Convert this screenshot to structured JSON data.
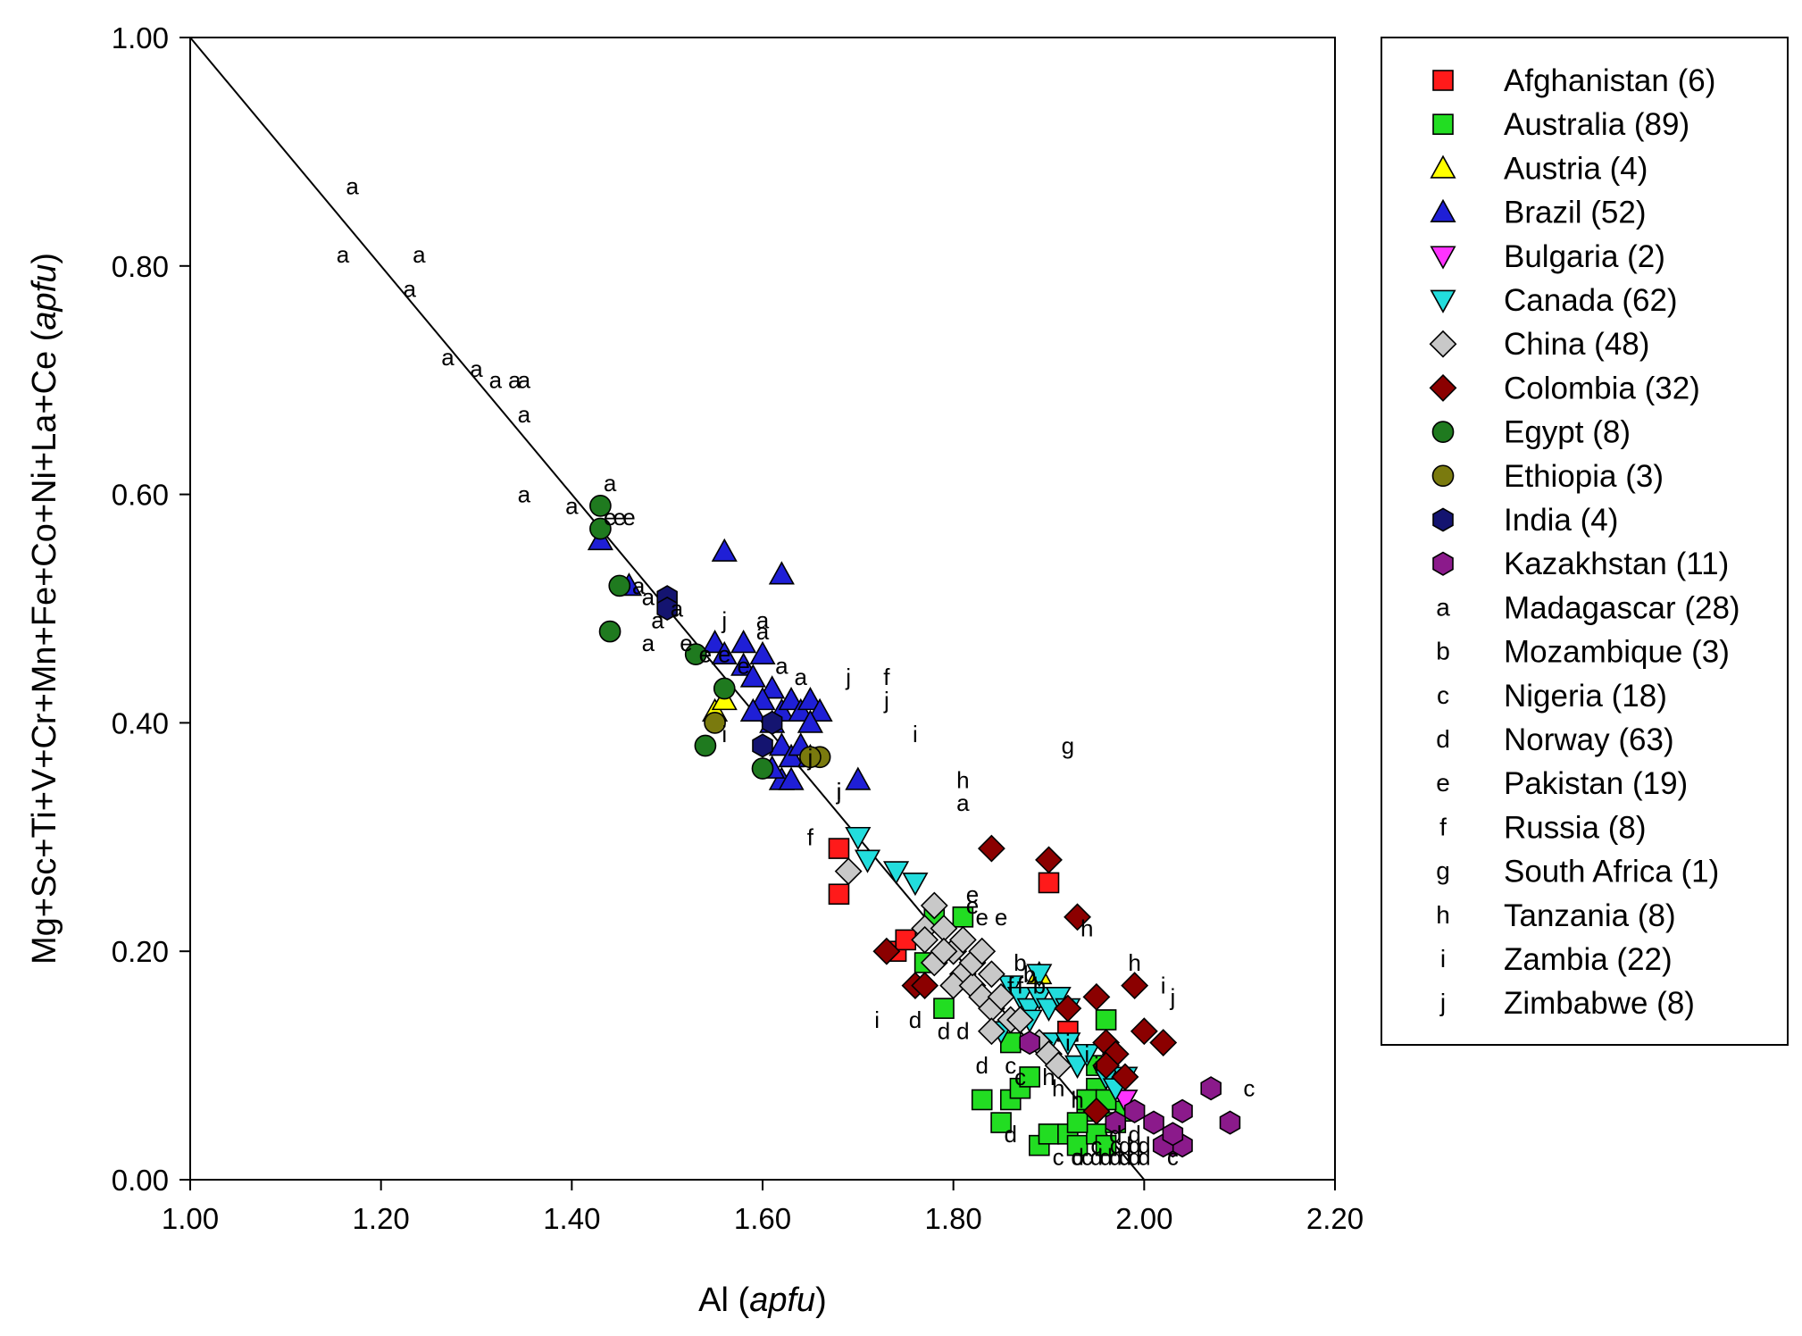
{
  "chart_data": {
    "type": "scatter",
    "xlabel": "Al",
    "xlabel_unit": "apfu",
    "ylabel": "Mg+Sc+Ti+V+Cr+Mn+Fe+Co+Ni+La+Ce",
    "ylabel_unit": "apfu",
    "xlim": [
      1.0,
      2.2
    ],
    "ylim": [
      0.0,
      1.0
    ],
    "x_ticks": [
      "1.00",
      "1.20",
      "1.40",
      "1.60",
      "1.80",
      "2.00",
      "2.20"
    ],
    "y_ticks": [
      "0.00",
      "0.20",
      "0.40",
      "0.60",
      "0.80",
      "1.00"
    ],
    "reference_line": {
      "x": [
        1.0,
        2.0
      ],
      "y": [
        1.0,
        0.0
      ]
    },
    "legend_position": "outside-right",
    "series": [
      {
        "name": "Afghanistan (6)",
        "marker": "square",
        "color": "#ff1a1a",
        "points": [
          [
            1.68,
            0.29
          ],
          [
            1.68,
            0.25
          ],
          [
            1.74,
            0.2
          ],
          [
            1.75,
            0.21
          ],
          [
            1.9,
            0.26
          ],
          [
            1.92,
            0.13
          ]
        ]
      },
      {
        "name": "Australia (89)",
        "marker": "square",
        "color": "#22dd22",
        "points": [
          [
            1.77,
            0.19
          ],
          [
            1.78,
            0.23
          ],
          [
            1.81,
            0.23
          ],
          [
            1.79,
            0.15
          ],
          [
            1.86,
            0.12
          ],
          [
            1.86,
            0.07
          ],
          [
            1.87,
            0.08
          ],
          [
            1.88,
            0.09
          ],
          [
            1.85,
            0.05
          ],
          [
            1.83,
            0.07
          ],
          [
            1.89,
            0.03
          ],
          [
            1.9,
            0.04
          ],
          [
            1.92,
            0.04
          ],
          [
            1.93,
            0.03
          ],
          [
            1.94,
            0.06
          ],
          [
            1.95,
            0.08
          ],
          [
            1.96,
            0.14
          ],
          [
            1.95,
            0.04
          ],
          [
            1.97,
            0.05
          ],
          [
            1.96,
            0.03
          ],
          [
            1.98,
            0.06
          ],
          [
            1.94,
            0.07
          ],
          [
            1.93,
            0.05
          ],
          [
            1.95,
            0.1
          ],
          [
            1.96,
            0.07
          ]
        ]
      },
      {
        "name": "Austria (4)",
        "marker": "triangle-up",
        "color": "#ffff00",
        "points": [
          [
            1.55,
            0.41
          ],
          [
            1.56,
            0.42
          ],
          [
            1.63,
            0.37
          ],
          [
            1.89,
            0.18
          ]
        ]
      },
      {
        "name": "Brazil (52)",
        "marker": "triangle-up",
        "color": "#1f1fd6",
        "points": [
          [
            1.43,
            0.56
          ],
          [
            1.46,
            0.52
          ],
          [
            1.56,
            0.55
          ],
          [
            1.62,
            0.53
          ],
          [
            1.55,
            0.47
          ],
          [
            1.56,
            0.46
          ],
          [
            1.58,
            0.45
          ],
          [
            1.59,
            0.44
          ],
          [
            1.6,
            0.46
          ],
          [
            1.61,
            0.43
          ],
          [
            1.6,
            0.42
          ],
          [
            1.59,
            0.41
          ],
          [
            1.61,
            0.4
          ],
          [
            1.62,
            0.41
          ],
          [
            1.63,
            0.42
          ],
          [
            1.64,
            0.41
          ],
          [
            1.65,
            0.42
          ],
          [
            1.66,
            0.41
          ],
          [
            1.62,
            0.38
          ],
          [
            1.63,
            0.37
          ],
          [
            1.64,
            0.38
          ],
          [
            1.65,
            0.4
          ],
          [
            1.62,
            0.35
          ],
          [
            1.63,
            0.35
          ],
          [
            1.7,
            0.35
          ],
          [
            1.61,
            0.36
          ],
          [
            1.65,
            0.37
          ],
          [
            1.58,
            0.47
          ]
        ]
      },
      {
        "name": "Bulgaria (2)",
        "marker": "triangle-down",
        "color": "#ff33ff",
        "points": [
          [
            1.96,
            0.09
          ],
          [
            1.98,
            0.07
          ]
        ]
      },
      {
        "name": "Canada (62)",
        "marker": "triangle-down",
        "color": "#22dddd",
        "points": [
          [
            1.7,
            0.3
          ],
          [
            1.71,
            0.28
          ],
          [
            1.74,
            0.27
          ],
          [
            1.76,
            0.26
          ],
          [
            1.86,
            0.17
          ],
          [
            1.87,
            0.16
          ],
          [
            1.88,
            0.15
          ],
          [
            1.89,
            0.16
          ],
          [
            1.9,
            0.15
          ],
          [
            1.91,
            0.16
          ],
          [
            1.92,
            0.15
          ],
          [
            1.89,
            0.18
          ],
          [
            1.88,
            0.14
          ],
          [
            1.9,
            0.12
          ],
          [
            1.93,
            0.1
          ],
          [
            1.94,
            0.11
          ],
          [
            1.96,
            0.09
          ],
          [
            1.97,
            0.08
          ],
          [
            1.98,
            0.09
          ],
          [
            1.92,
            0.12
          ],
          [
            1.85,
            0.13
          ]
        ]
      },
      {
        "name": "China (48)",
        "marker": "diamond",
        "color": "#c8c8c8",
        "points": [
          [
            1.69,
            0.27
          ],
          [
            1.77,
            0.22
          ],
          [
            1.78,
            0.24
          ],
          [
            1.77,
            0.21
          ],
          [
            1.79,
            0.22
          ],
          [
            1.8,
            0.2
          ],
          [
            1.78,
            0.19
          ],
          [
            1.81,
            0.18
          ],
          [
            1.8,
            0.17
          ],
          [
            1.82,
            0.17
          ],
          [
            1.83,
            0.16
          ],
          [
            1.84,
            0.15
          ],
          [
            1.82,
            0.19
          ],
          [
            1.84,
            0.18
          ],
          [
            1.85,
            0.16
          ],
          [
            1.86,
            0.14
          ],
          [
            1.84,
            0.13
          ],
          [
            1.87,
            0.14
          ],
          [
            1.89,
            0.12
          ],
          [
            1.9,
            0.11
          ],
          [
            1.91,
            0.1
          ],
          [
            1.83,
            0.2
          ],
          [
            1.81,
            0.21
          ],
          [
            1.79,
            0.2
          ]
        ]
      },
      {
        "name": "Colombia (32)",
        "marker": "diamond",
        "color": "#8b0000",
        "points": [
          [
            1.84,
            0.29
          ],
          [
            1.9,
            0.28
          ],
          [
            1.93,
            0.23
          ],
          [
            1.73,
            0.2
          ],
          [
            1.76,
            0.17
          ],
          [
            1.77,
            0.17
          ],
          [
            1.95,
            0.16
          ],
          [
            1.99,
            0.17
          ],
          [
            2.0,
            0.13
          ],
          [
            2.02,
            0.12
          ],
          [
            1.96,
            0.12
          ],
          [
            1.97,
            0.11
          ],
          [
            1.96,
            0.1
          ],
          [
            1.92,
            0.15
          ],
          [
            1.98,
            0.09
          ],
          [
            1.95,
            0.06
          ]
        ]
      },
      {
        "name": "Egypt (8)",
        "marker": "circle",
        "color": "#1f7a1f",
        "points": [
          [
            1.43,
            0.59
          ],
          [
            1.43,
            0.57
          ],
          [
            1.45,
            0.52
          ],
          [
            1.44,
            0.48
          ],
          [
            1.53,
            0.46
          ],
          [
            1.56,
            0.43
          ],
          [
            1.54,
            0.38
          ],
          [
            1.6,
            0.36
          ]
        ]
      },
      {
        "name": "Ethiopia (3)",
        "marker": "circle",
        "color": "#7a7a0e",
        "points": [
          [
            1.55,
            0.4
          ],
          [
            1.66,
            0.37
          ],
          [
            1.65,
            0.37
          ]
        ]
      },
      {
        "name": "India (4)",
        "marker": "hexagon",
        "color": "#141470",
        "points": [
          [
            1.5,
            0.51
          ],
          [
            1.5,
            0.5
          ],
          [
            1.6,
            0.38
          ],
          [
            1.61,
            0.4
          ]
        ]
      },
      {
        "name": "Kazakhstan (11)",
        "marker": "hexagon",
        "color": "#8b1a8b",
        "points": [
          [
            2.07,
            0.08
          ],
          [
            2.09,
            0.05
          ],
          [
            2.04,
            0.06
          ],
          [
            2.03,
            0.03
          ],
          [
            2.04,
            0.03
          ],
          [
            2.02,
            0.03
          ],
          [
            2.01,
            0.05
          ],
          [
            1.99,
            0.06
          ],
          [
            1.88,
            0.12
          ],
          [
            1.97,
            0.05
          ],
          [
            2.03,
            0.04
          ]
        ]
      },
      {
        "name": "Madagascar (28)",
        "marker": "letter",
        "letter": "a",
        "points": [
          [
            1.17,
            0.87
          ],
          [
            1.16,
            0.81
          ],
          [
            1.24,
            0.81
          ],
          [
            1.23,
            0.78
          ],
          [
            1.27,
            0.72
          ],
          [
            1.3,
            0.71
          ],
          [
            1.32,
            0.7
          ],
          [
            1.34,
            0.7
          ],
          [
            1.35,
            0.7
          ],
          [
            1.35,
            0.67
          ],
          [
            1.35,
            0.6
          ],
          [
            1.4,
            0.59
          ],
          [
            1.44,
            0.61
          ],
          [
            1.47,
            0.52
          ],
          [
            1.48,
            0.51
          ],
          [
            1.48,
            0.47
          ],
          [
            1.51,
            0.5
          ],
          [
            1.6,
            0.49
          ],
          [
            1.6,
            0.48
          ],
          [
            1.62,
            0.45
          ],
          [
            1.64,
            0.44
          ],
          [
            1.81,
            0.33
          ],
          [
            1.49,
            0.49
          ]
        ]
      },
      {
        "name": "Mozambique (3)",
        "marker": "letter",
        "letter": "b",
        "points": [
          [
            1.87,
            0.19
          ],
          [
            1.88,
            0.18
          ],
          [
            1.89,
            0.17
          ]
        ]
      },
      {
        "name": "Nigeria (18)",
        "marker": "letter",
        "letter": "c",
        "points": [
          [
            2.11,
            0.08
          ],
          [
            1.86,
            0.1
          ],
          [
            1.87,
            0.09
          ],
          [
            1.91,
            0.02
          ],
          [
            1.93,
            0.02
          ],
          [
            1.94,
            0.02
          ],
          [
            1.95,
            0.03
          ],
          [
            1.97,
            0.03
          ],
          [
            2.03,
            0.02
          ]
        ]
      },
      {
        "name": "Norway (63)",
        "marker": "letter",
        "letter": "d",
        "points": [
          [
            1.76,
            0.14
          ],
          [
            1.79,
            0.13
          ],
          [
            1.81,
            0.13
          ],
          [
            1.83,
            0.1
          ],
          [
            1.86,
            0.04
          ],
          [
            1.93,
            0.02
          ],
          [
            1.95,
            0.02
          ],
          [
            1.96,
            0.02
          ],
          [
            1.97,
            0.02
          ],
          [
            1.98,
            0.02
          ],
          [
            1.99,
            0.02
          ],
          [
            2.0,
            0.02
          ],
          [
            1.98,
            0.03
          ],
          [
            1.99,
            0.03
          ],
          [
            2.0,
            0.03
          ],
          [
            1.97,
            0.04
          ],
          [
            1.99,
            0.04
          ],
          [
            1.98,
            0.02
          ]
        ]
      },
      {
        "name": "Pakistan (19)",
        "marker": "letter",
        "letter": "e",
        "points": [
          [
            1.44,
            0.58
          ],
          [
            1.45,
            0.58
          ],
          [
            1.46,
            0.58
          ],
          [
            1.52,
            0.47
          ],
          [
            1.54,
            0.46
          ],
          [
            1.56,
            0.46
          ],
          [
            1.58,
            0.45
          ],
          [
            1.82,
            0.25
          ],
          [
            1.82,
            0.24
          ],
          [
            1.83,
            0.23
          ],
          [
            1.85,
            0.23
          ]
        ]
      },
      {
        "name": "Russia (8)",
        "marker": "letter",
        "letter": "f",
        "points": [
          [
            1.73,
            0.44
          ],
          [
            1.65,
            0.3
          ],
          [
            1.86,
            0.17
          ],
          [
            1.87,
            0.17
          ]
        ]
      },
      {
        "name": "South Africa (1)",
        "marker": "letter",
        "letter": "g",
        "points": [
          [
            1.92,
            0.38
          ]
        ]
      },
      {
        "name": "Tanzania (8)",
        "marker": "letter",
        "letter": "h",
        "points": [
          [
            1.81,
            0.35
          ],
          [
            1.94,
            0.22
          ],
          [
            1.99,
            0.19
          ],
          [
            1.9,
            0.09
          ],
          [
            1.91,
            0.08
          ],
          [
            1.93,
            0.07
          ]
        ]
      },
      {
        "name": "Zambia (22)",
        "marker": "letter",
        "letter": "i",
        "points": [
          [
            1.76,
            0.39
          ],
          [
            1.72,
            0.14
          ],
          [
            1.68,
            0.34
          ],
          [
            1.56,
            0.39
          ],
          [
            1.86,
            0.17
          ],
          [
            2.02,
            0.17
          ],
          [
            1.92,
            0.12
          ],
          [
            1.94,
            0.11
          ],
          [
            1.95,
            0.1
          ]
        ]
      },
      {
        "name": "Zimbabwe (8)",
        "marker": "letter",
        "letter": "j",
        "points": [
          [
            1.69,
            0.44
          ],
          [
            1.73,
            0.42
          ],
          [
            2.03,
            0.16
          ],
          [
            1.68,
            0.34
          ],
          [
            1.56,
            0.49
          ],
          [
            1.65,
            0.37
          ]
        ]
      }
    ]
  }
}
